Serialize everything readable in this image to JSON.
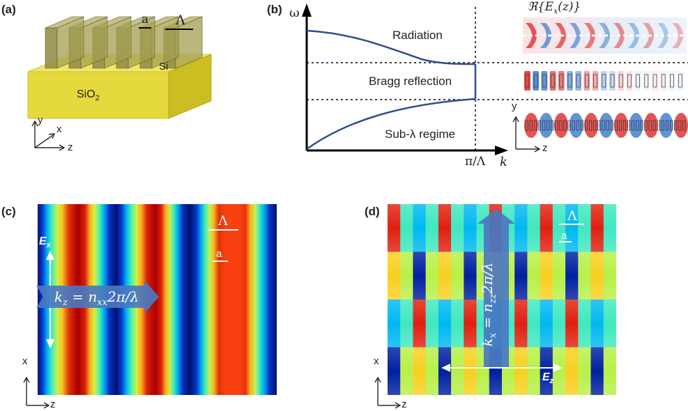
{
  "panels": {
    "a": {
      "label": "(a)",
      "a": "a",
      "period": "Λ",
      "si": "Si",
      "sio2_main": "SiO",
      "sio2_sub": "2",
      "axis_y": "y",
      "axis_x": "x",
      "axis_z": "z"
    },
    "b": {
      "label": "(b)",
      "omega": "ω",
      "k": "k",
      "pi_over_lambda": "π/Λ",
      "radiation": "Radiation",
      "bragg": "Bragg reflection",
      "sub_lambda": "Sub-λ regime",
      "field_title": "ℜ{E",
      "field_sub": "x",
      "field_tail": "(z)}",
      "axis_y": "y",
      "axis_z": "z"
    },
    "c": {
      "label": "(c)",
      "period": "Λ",
      "a": "a",
      "e_field": "E",
      "e_sub": "x",
      "k_text": "k",
      "k_sub": "z",
      "k_eq": " = n",
      "k_sub2": "xx",
      "k_tail": "2π/λ",
      "axis_x": "x",
      "axis_z": "z"
    },
    "d": {
      "label": "(d)",
      "period": "Λ",
      "a": "a",
      "e_field": "E",
      "e_sub": "z",
      "k_text": "k",
      "k_sub": "x",
      "k_eq": " = n",
      "k_sub2": "zz",
      "k_tail": "2π/λ",
      "axis_x": "x",
      "axis_z": "z"
    }
  },
  "colors": {
    "curve": "#2e4e8a",
    "substrate": "#e8dc48",
    "arrow_blue": "#4a78c0"
  }
}
